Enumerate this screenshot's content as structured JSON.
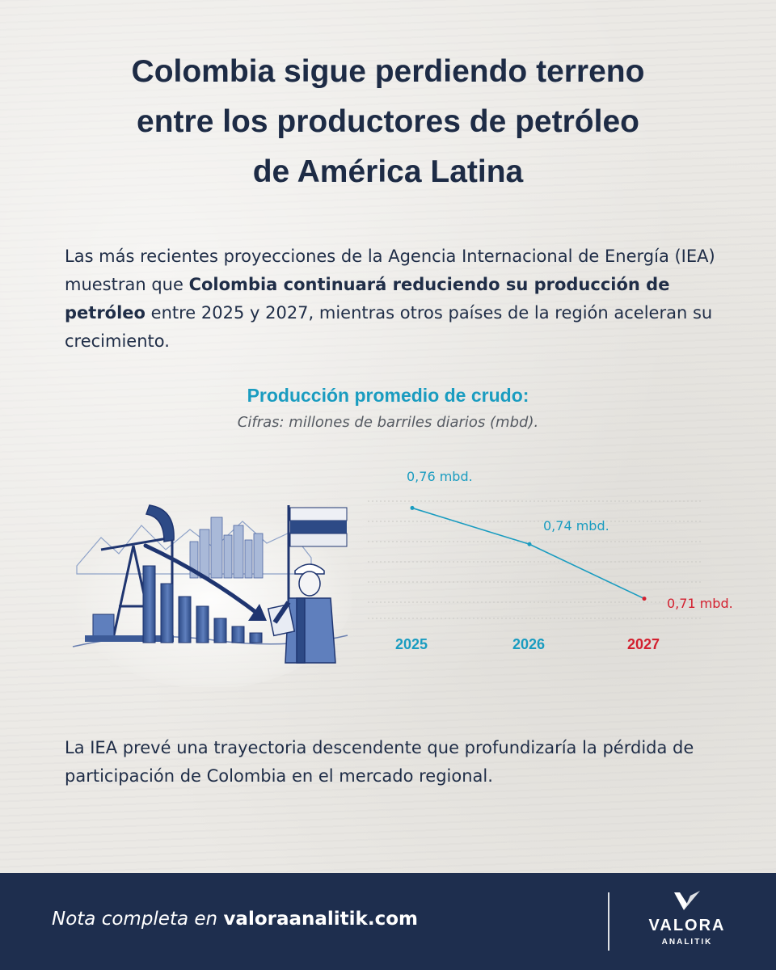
{
  "header": {
    "title_line1": "Colombia sigue perdiendo terreno",
    "title_line2": "entre los productores de petróleo",
    "title_line3": "de América Latina"
  },
  "intro": {
    "part1": "Las más recientes proyecciones de la Agencia Internacional de Energía (IEA) muestran que ",
    "bold": "Colombia continuará reduciendo su producción de petróleo",
    "part2": " entre 2025 y 2027, mientras otros países de la región aceleran su crecimiento."
  },
  "outro": {
    "text": "La IEA prevé una trayectoria descendente que profundizaría la pérdida de participación de Colombia en el mercado regional."
  },
  "footer": {
    "note_lead": "Nota completa en ",
    "note_site": "valoraanalitik.com",
    "logo_word": "VALORA",
    "logo_sub": "ANALITIK"
  },
  "colors": {
    "accent": "#1a9cc0",
    "highlight": "#d3202f",
    "navy": "#1e2e4e",
    "text": "#1f2d47"
  },
  "icons": {
    "illustration": "oil-pumpjack-worker-illustration",
    "logo": "valora-logo-mark-icon"
  },
  "chart_data": {
    "type": "line",
    "title": "Producción promedio de crudo:",
    "subtitle": "Cifras: millones de barriles diarios (mbd).",
    "x": [
      "2025",
      "2026",
      "2027"
    ],
    "series": [
      {
        "values": [
          0.76,
          0.74,
          0.71
        ]
      }
    ],
    "data_labels": [
      "0,76 mbd.",
      "0,74 mbd.",
      "0,71 mbd."
    ],
    "highlight_index": 2,
    "ylim": [
      0.7,
      0.77
    ],
    "grid": true,
    "legend": "none"
  }
}
